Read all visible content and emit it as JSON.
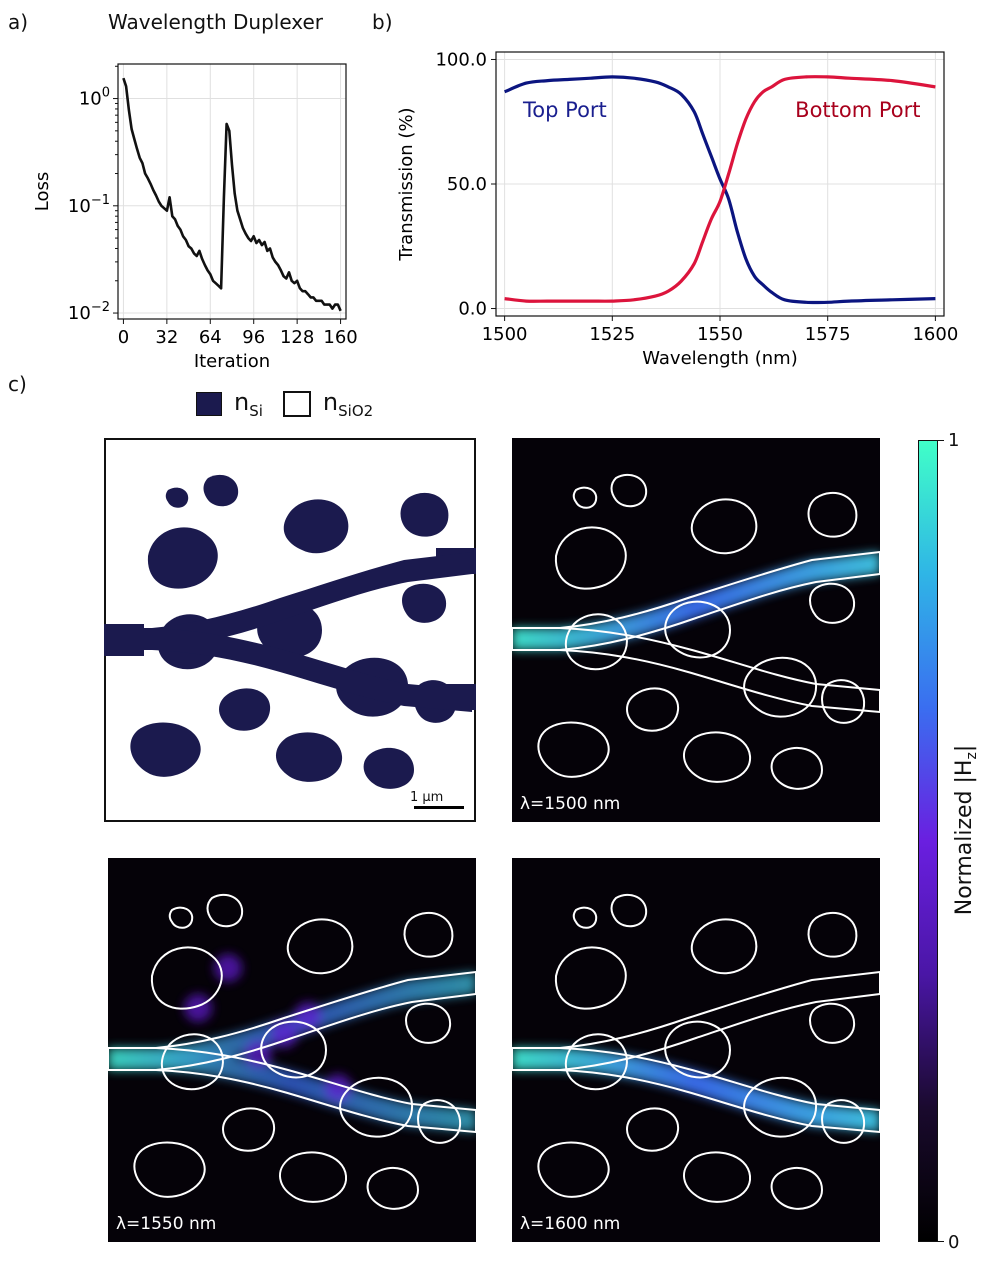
{
  "panels": {
    "a": {
      "label": "a)",
      "title": "Wavelength Duplexer"
    },
    "b": {
      "label": "b)"
    },
    "c": {
      "label": "c)"
    }
  },
  "chart_data": [
    {
      "id": "loss",
      "type": "line",
      "title": "Wavelength Duplexer",
      "xlabel": "Iteration",
      "ylabel": "Loss",
      "yscale": "log",
      "xlim": [
        -4,
        164
      ],
      "ylim": [
        0.0088,
        2.1
      ],
      "xticks": [
        0,
        32,
        64,
        96,
        128,
        160
      ],
      "xtick_labels": [
        "0",
        "32",
        "64",
        "96",
        "128",
        "160"
      ],
      "yticks": [
        1,
        0.1,
        0.01
      ],
      "ytick_labels": [
        {
          "base": "10",
          "exp": "0"
        },
        {
          "base": "10",
          "exp": "−1"
        },
        {
          "base": "10",
          "exp": "−2"
        }
      ],
      "grid": true,
      "series": [
        {
          "name": "Loss",
          "color": "#111111",
          "x": [
            0,
            2,
            4,
            6,
            8,
            10,
            12,
            14,
            16,
            18,
            20,
            22,
            24,
            26,
            28,
            30,
            32,
            34,
            36,
            38,
            40,
            42,
            44,
            46,
            48,
            50,
            52,
            54,
            56,
            58,
            60,
            62,
            64,
            66,
            68,
            70,
            72,
            74,
            76,
            78,
            80,
            82,
            84,
            86,
            88,
            90,
            92,
            94,
            96,
            98,
            100,
            102,
            104,
            106,
            108,
            110,
            112,
            114,
            116,
            118,
            120,
            122,
            124,
            126,
            128,
            130,
            132,
            134,
            136,
            138,
            140,
            142,
            144,
            146,
            148,
            150,
            152,
            154,
            156,
            158,
            160
          ],
          "y": [
            1.55,
            1.3,
            0.78,
            0.52,
            0.42,
            0.34,
            0.28,
            0.25,
            0.2,
            0.18,
            0.16,
            0.14,
            0.125,
            0.11,
            0.1,
            0.095,
            0.09,
            0.12,
            0.08,
            0.075,
            0.065,
            0.06,
            0.052,
            0.048,
            0.042,
            0.04,
            0.036,
            0.034,
            0.038,
            0.032,
            0.028,
            0.025,
            0.023,
            0.02,
            0.019,
            0.018,
            0.017,
            0.12,
            0.58,
            0.5,
            0.24,
            0.13,
            0.09,
            0.075,
            0.062,
            0.055,
            0.05,
            0.047,
            0.052,
            0.045,
            0.048,
            0.043,
            0.046,
            0.038,
            0.04,
            0.033,
            0.03,
            0.028,
            0.025,
            0.022,
            0.021,
            0.024,
            0.02,
            0.019,
            0.02,
            0.017,
            0.016,
            0.016,
            0.015,
            0.014,
            0.014,
            0.013,
            0.013,
            0.013,
            0.012,
            0.012,
            0.012,
            0.011,
            0.012,
            0.012,
            0.0105
          ]
        }
      ]
    },
    {
      "id": "transmission",
      "type": "line",
      "xlabel": "Wavelength (nm)",
      "ylabel": "Transmission (%)",
      "xlim": [
        1498,
        1602
      ],
      "ylim": [
        -3,
        103
      ],
      "xticks": [
        1500,
        1525,
        1550,
        1575,
        1600
      ],
      "xtick_labels": [
        "1500",
        "1525",
        "1550",
        "1575",
        "1600"
      ],
      "yticks": [
        0,
        50,
        100
      ],
      "ytick_labels": [
        "0.0",
        "50.0",
        "100.0"
      ],
      "grid": true,
      "series": [
        {
          "name": "Top Port",
          "label": "Top Port",
          "color": "#0b1580",
          "label_color": "#1a1f8f",
          "x": [
            1500,
            1505,
            1510,
            1515,
            1520,
            1525,
            1530,
            1535,
            1538,
            1541,
            1544,
            1546,
            1548,
            1550,
            1552,
            1554,
            1556,
            1558,
            1560,
            1562,
            1565,
            1570,
            1575,
            1580,
            1590,
            1600
          ],
          "y": [
            87,
            90.5,
            91.5,
            92,
            92.5,
            93,
            92.5,
            91,
            89,
            86,
            79,
            70,
            61,
            52,
            44,
            31,
            20,
            13,
            9.5,
            6.5,
            3.5,
            2.5,
            2.5,
            3,
            3.5,
            4
          ]
        },
        {
          "name": "Bottom Port",
          "label": "Bottom Port",
          "color": "#dc143c",
          "label_color": "#a8001c",
          "x": [
            1500,
            1505,
            1510,
            1515,
            1520,
            1525,
            1530,
            1535,
            1538,
            1541,
            1544,
            1546,
            1548,
            1550,
            1552,
            1554,
            1556,
            1558,
            1560,
            1562,
            1565,
            1570,
            1575,
            1580,
            1590,
            1600
          ],
          "y": [
            4,
            3,
            3,
            3,
            3,
            3,
            3.5,
            5,
            7,
            11,
            18,
            27,
            36,
            43,
            54,
            66,
            76,
            83,
            87,
            89,
            92,
            93,
            93,
            92.5,
            91.5,
            89
          ]
        }
      ]
    }
  ],
  "legend_c": [
    {
      "main": "n",
      "sub": "Si",
      "swatch": "filled",
      "color": "#1b1a4e"
    },
    {
      "main": "n",
      "sub": "SiO2",
      "swatch": "empty",
      "color": "#ffffff"
    }
  ],
  "scale_bar": {
    "label": "1 μm"
  },
  "fields": [
    {
      "label": "λ=1500 nm",
      "route": "top"
    },
    {
      "label": "λ=1550 nm",
      "route": "both"
    },
    {
      "label": "λ=1600 nm",
      "route": "bottom"
    }
  ],
  "colorbar": {
    "label_main": "Normalized |H",
    "label_sub": "z",
    "label_end": "|",
    "min_label": "0",
    "max_label": "1",
    "colors": [
      "#000000",
      "#1a0a2e",
      "#4a16a6",
      "#6a1fe0",
      "#3a6ef0",
      "#2fb5e6",
      "#40ffc8"
    ]
  }
}
